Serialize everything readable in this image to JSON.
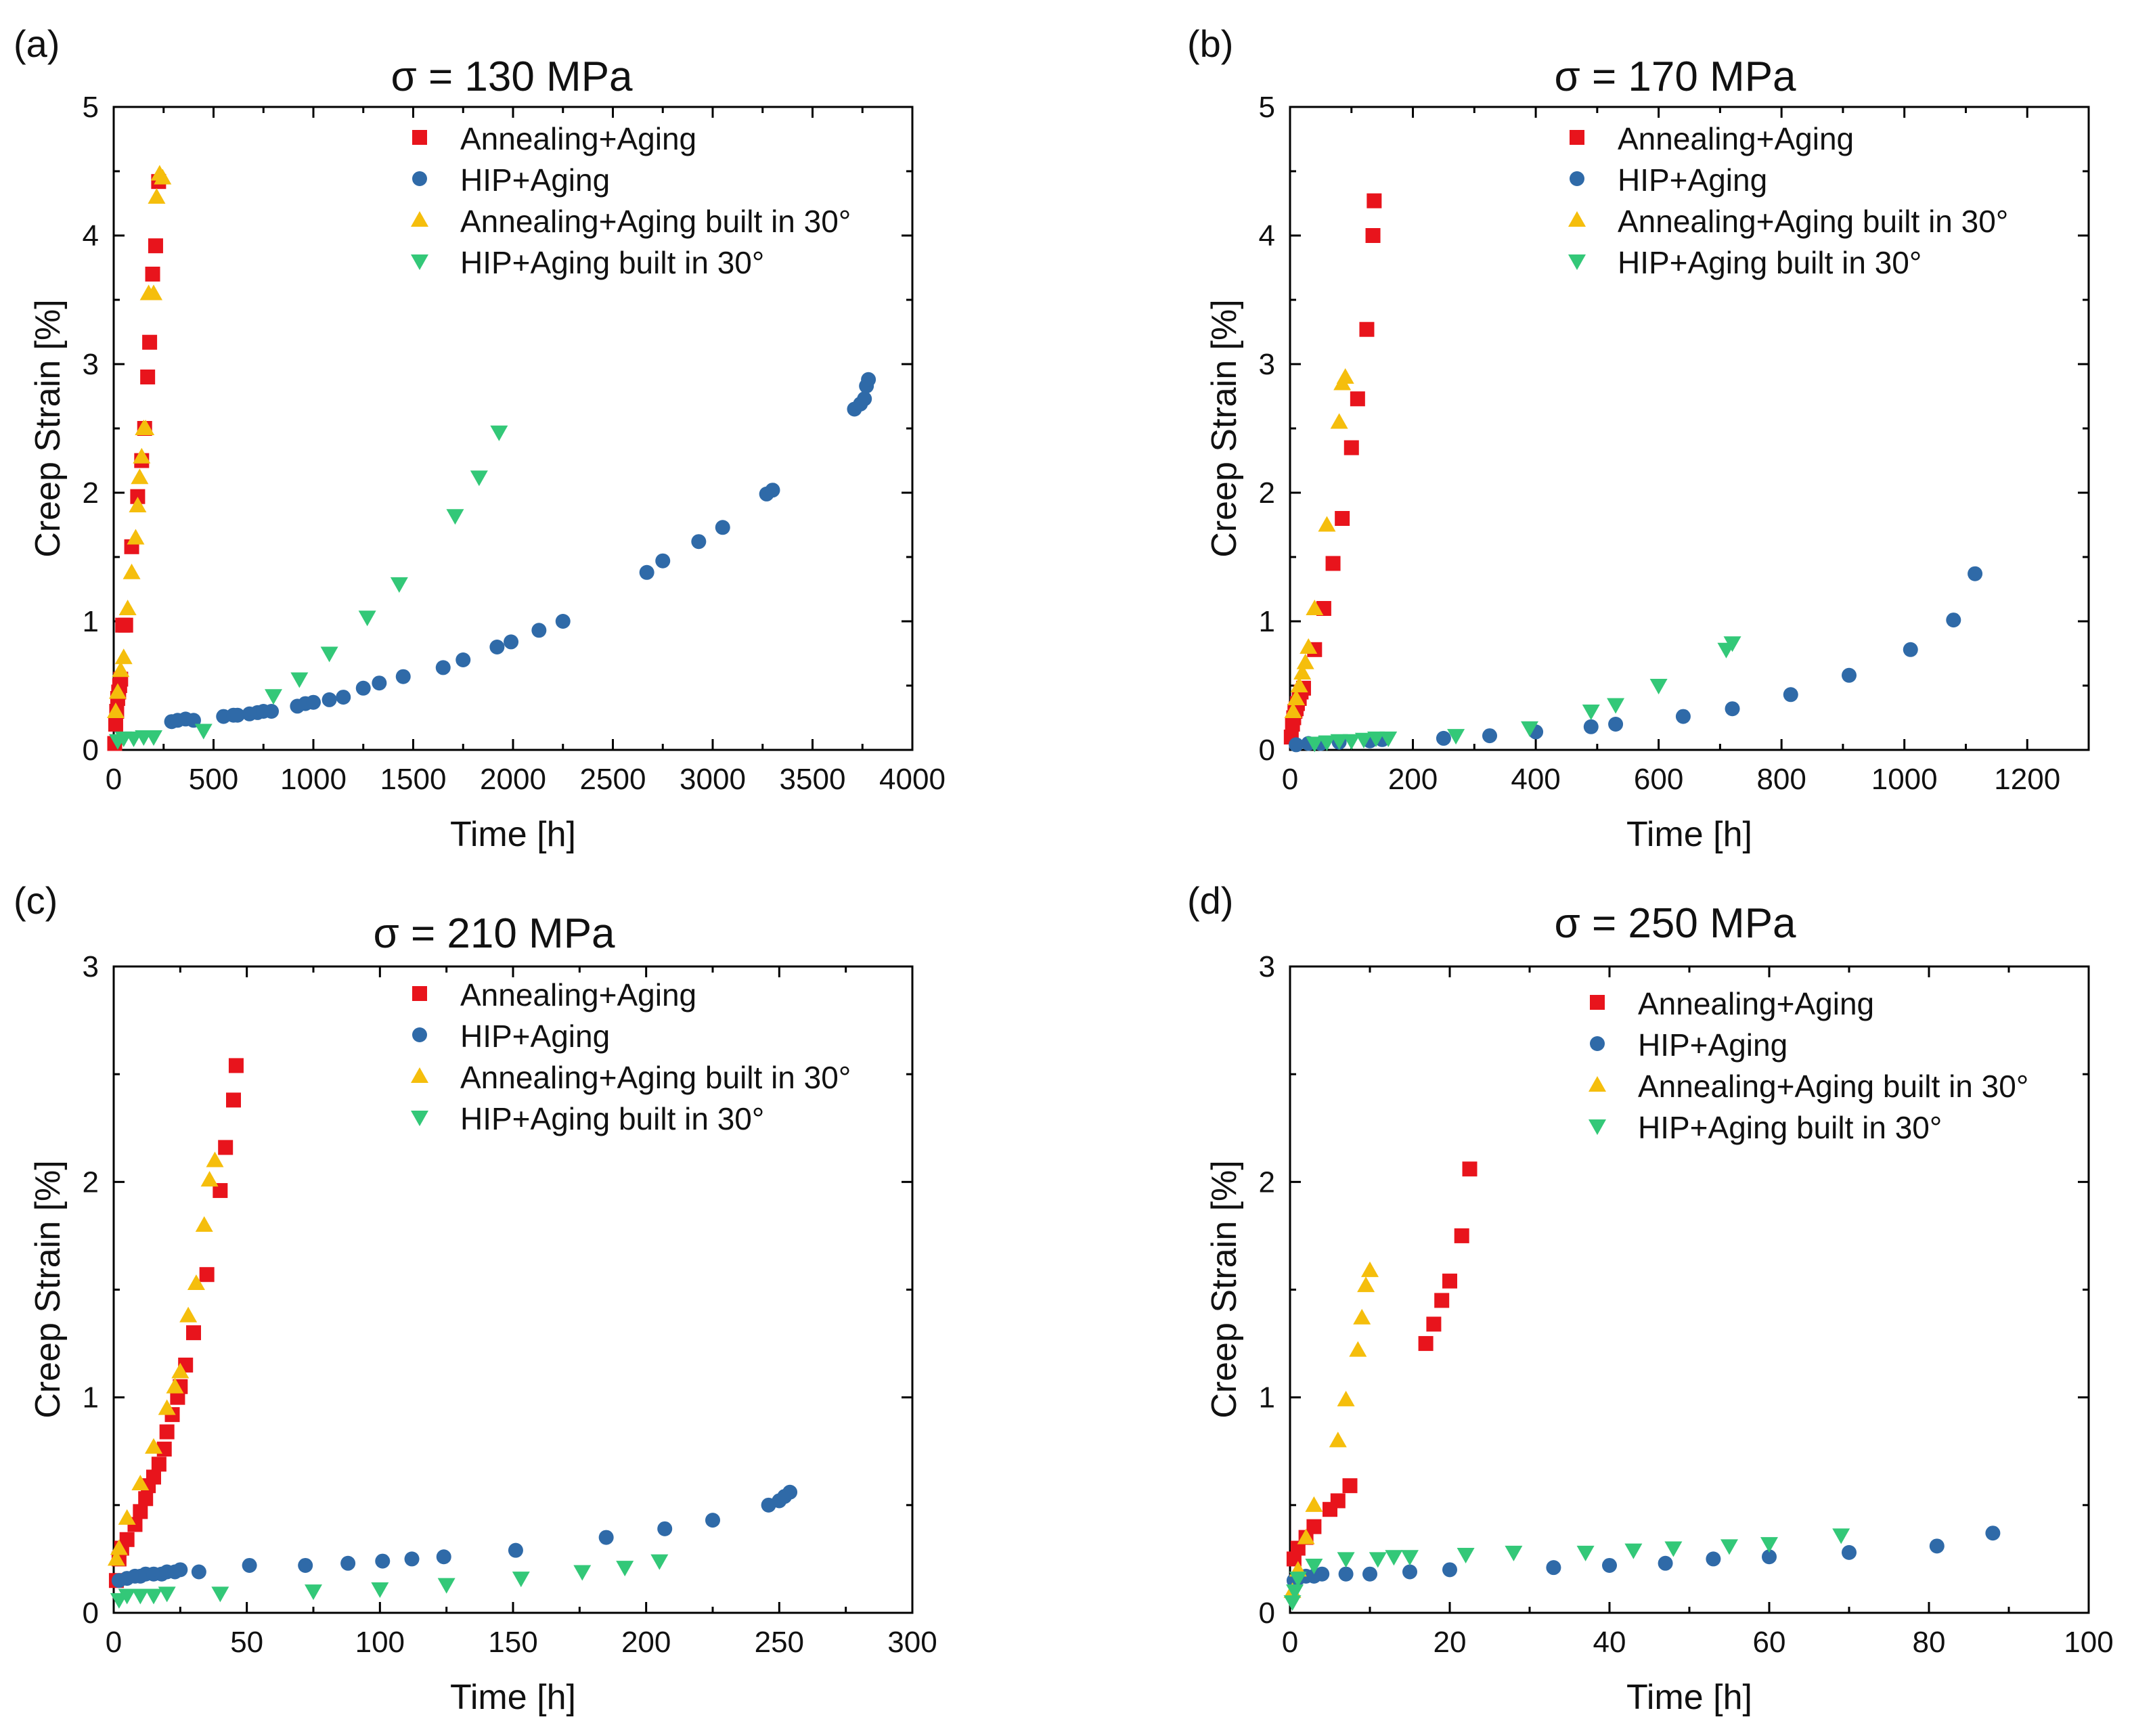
{
  "series_styles": [
    {
      "key": "aa",
      "marker": "square",
      "color": "#e8141c"
    },
    {
      "key": "hip",
      "marker": "circle",
      "color": "#2f6aa8"
    },
    {
      "key": "aa30",
      "marker": "triangle-up",
      "color": "#f5be0c"
    },
    {
      "key": "hip30",
      "marker": "triangle-down",
      "color": "#33c878"
    }
  ],
  "chart_data": [
    {
      "panel_label": "(a)",
      "type": "scatter",
      "title": "σ = 130 MPa",
      "xlabel": "Time [h]",
      "ylabel": "Creep Strain [%]",
      "xlim": [
        0,
        4000
      ],
      "ylim": [
        0,
        5
      ],
      "xticks": [
        0,
        500,
        1000,
        1500,
        2000,
        2500,
        3000,
        3500,
        4000
      ],
      "yticks": [
        0,
        1,
        2,
        3,
        4,
        5
      ],
      "legend": [
        "Annealing+Aging",
        "HIP+Aging",
        "Annealing+Aging built in 30°",
        "HIP+Aging built in 30°"
      ],
      "series": [
        {
          "name": "Annealing+Aging",
          "x": [
            5,
            10,
            15,
            20,
            25,
            30,
            35,
            45,
            60,
            90,
            120,
            140,
            155,
            170,
            180,
            195,
            210,
            225
          ],
          "y": [
            0.05,
            0.2,
            0.3,
            0.4,
            0.45,
            0.5,
            0.55,
            0.97,
            0.97,
            1.58,
            1.97,
            2.25,
            2.5,
            2.9,
            3.17,
            3.7,
            3.92,
            4.42
          ]
        },
        {
          "name": "HIP+Aging",
          "x": [
            290,
            320,
            360,
            400,
            550,
            600,
            620,
            680,
            720,
            750,
            790,
            920,
            960,
            1000,
            1080,
            1150,
            1250,
            1330,
            1450,
            1650,
            1750,
            1920,
            1990,
            2130,
            2250,
            2670,
            2750,
            2930,
            3050,
            3270,
            3300,
            3710,
            3740,
            3760,
            3770,
            3780
          ],
          "y": [
            0.22,
            0.23,
            0.24,
            0.23,
            0.26,
            0.27,
            0.27,
            0.28,
            0.29,
            0.3,
            0.3,
            0.34,
            0.36,
            0.37,
            0.39,
            0.41,
            0.48,
            0.52,
            0.57,
            0.64,
            0.7,
            0.8,
            0.84,
            0.93,
            1.0,
            1.38,
            1.47,
            1.62,
            1.73,
            1.99,
            2.02,
            2.65,
            2.69,
            2.73,
            2.83,
            2.88
          ]
        },
        {
          "name": "Annealing+Aging built in 30°",
          "x": [
            10,
            20,
            35,
            50,
            70,
            90,
            110,
            120,
            130,
            140,
            150,
            160,
            175,
            200,
            215,
            230,
            245
          ],
          "y": [
            0.3,
            0.45,
            0.62,
            0.72,
            1.1,
            1.38,
            1.65,
            1.9,
            2.12,
            2.28,
            2.5,
            2.5,
            3.55,
            3.55,
            4.3,
            4.48,
            4.45
          ]
        },
        {
          "name": "HIP+Aging built in 30°",
          "x": [
            20,
            50,
            100,
            150,
            200,
            450,
            800,
            930,
            1080,
            1270,
            1430,
            1710,
            1830,
            1930
          ],
          "y": [
            0.07,
            0.09,
            0.09,
            0.1,
            0.1,
            0.15,
            0.42,
            0.55,
            0.75,
            1.03,
            1.29,
            1.82,
            2.12,
            2.47
          ]
        }
      ]
    },
    {
      "panel_label": "(b)",
      "type": "scatter",
      "title": "σ = 170 MPa",
      "xlabel": "Time [h]",
      "ylabel": "Creep Strain [%]",
      "xlim": [
        0,
        1300
      ],
      "ylim": [
        0,
        5
      ],
      "xticks": [
        0,
        200,
        400,
        600,
        800,
        1000,
        1200
      ],
      "yticks": [
        0,
        1,
        2,
        3,
        4,
        5
      ],
      "legend": [
        "Annealing+Aging",
        "HIP+Aging",
        "Annealing+Aging built in 30°",
        "HIP+Aging built in 30°"
      ],
      "series": [
        {
          "name": "Annealing+Aging",
          "x": [
            2,
            4,
            6,
            8,
            10,
            12,
            15,
            18,
            22,
            40,
            55,
            70,
            85,
            100,
            110,
            125,
            135,
            137
          ],
          "y": [
            0.1,
            0.2,
            0.25,
            0.3,
            0.32,
            0.36,
            0.4,
            0.45,
            0.48,
            0.78,
            1.1,
            1.45,
            1.8,
            2.35,
            2.73,
            3.27,
            4.0,
            4.27
          ]
        },
        {
          "name": "HIP+Aging",
          "x": [
            10,
            30,
            50,
            80,
            130,
            150,
            250,
            325,
            400,
            490,
            530,
            640,
            720,
            815,
            910,
            1010,
            1080,
            1115
          ],
          "y": [
            0.04,
            0.05,
            0.05,
            0.06,
            0.07,
            0.08,
            0.09,
            0.11,
            0.14,
            0.18,
            0.2,
            0.26,
            0.32,
            0.43,
            0.58,
            0.78,
            1.01,
            1.37
          ]
        },
        {
          "name": "Annealing+Aging built in 30°",
          "x": [
            5,
            10,
            15,
            20,
            25,
            30,
            40,
            60,
            80,
            85,
            90
          ],
          "y": [
            0.3,
            0.4,
            0.5,
            0.6,
            0.68,
            0.8,
            1.1,
            1.75,
            2.55,
            2.85,
            2.9
          ]
        },
        {
          "name": "HIP+Aging built in 30°",
          "x": [
            40,
            60,
            80,
            100,
            120,
            140,
            160,
            270,
            390,
            490,
            530,
            600,
            710,
            720
          ],
          "y": [
            0.05,
            0.06,
            0.07,
            0.07,
            0.08,
            0.09,
            0.09,
            0.11,
            0.17,
            0.3,
            0.35,
            0.5,
            0.78,
            0.83
          ]
        }
      ]
    },
    {
      "panel_label": "(c)",
      "type": "scatter",
      "title": "σ = 210 MPa",
      "xlabel": "Time [h]",
      "ylabel": "Creep Strain [%]",
      "xlim": [
        0,
        300
      ],
      "ylim": [
        0,
        3
      ],
      "xticks": [
        0,
        50,
        100,
        150,
        200,
        250,
        300
      ],
      "yticks": [
        0,
        1,
        2,
        3
      ],
      "legend": [
        "Annealing+Aging",
        "HIP+Aging",
        "Annealing+Aging built in 30°",
        "HIP+Aging built in 30°"
      ],
      "series": [
        {
          "name": "Annealing+Aging",
          "x": [
            1,
            2,
            3,
            5,
            8,
            10,
            12,
            13,
            15,
            17,
            19,
            20,
            22,
            24,
            25,
            27,
            30,
            35,
            40,
            42,
            45,
            46
          ],
          "y": [
            0.15,
            0.25,
            0.3,
            0.34,
            0.41,
            0.47,
            0.53,
            0.59,
            0.63,
            0.69,
            0.76,
            0.84,
            0.92,
            1.0,
            1.05,
            1.15,
            1.3,
            1.57,
            1.96,
            2.16,
            2.38,
            2.54
          ]
        },
        {
          "name": "HIP+Aging",
          "x": [
            2,
            5,
            8,
            10,
            12,
            15,
            18,
            20,
            23,
            25,
            32,
            51,
            72,
            88,
            101,
            112,
            124,
            151,
            185,
            207,
            225,
            246,
            250,
            252,
            254
          ],
          "y": [
            0.15,
            0.16,
            0.17,
            0.17,
            0.18,
            0.18,
            0.18,
            0.19,
            0.19,
            0.2,
            0.19,
            0.22,
            0.22,
            0.23,
            0.24,
            0.25,
            0.26,
            0.29,
            0.35,
            0.39,
            0.43,
            0.5,
            0.52,
            0.54,
            0.56
          ]
        },
        {
          "name": "Annealing+Aging built in 30°",
          "x": [
            1,
            2,
            5,
            10,
            15,
            20,
            23,
            25,
            28,
            31,
            34,
            36,
            38
          ],
          "y": [
            0.25,
            0.3,
            0.44,
            0.6,
            0.77,
            0.95,
            1.05,
            1.12,
            1.38,
            1.53,
            1.8,
            2.01,
            2.1
          ]
        },
        {
          "name": "HIP+Aging built in 30°",
          "x": [
            2,
            5,
            10,
            15,
            20,
            40,
            75,
            100,
            125,
            153,
            176,
            192,
            205
          ],
          "y": [
            0.06,
            0.08,
            0.08,
            0.08,
            0.09,
            0.09,
            0.1,
            0.11,
            0.13,
            0.16,
            0.19,
            0.21,
            0.24
          ]
        }
      ]
    },
    {
      "panel_label": "(d)",
      "type": "scatter",
      "title": "σ = 250 MPa",
      "xlabel": "Time [h]",
      "ylabel": "Creep Strain [%]",
      "xlim": [
        0,
        100
      ],
      "ylim": [
        0,
        3
      ],
      "xticks": [
        0,
        20,
        40,
        60,
        80,
        100
      ],
      "yticks": [
        0,
        1,
        2,
        3
      ],
      "legend": [
        "Annealing+Aging",
        "HIP+Aging",
        "Annealing+Aging built in 30°",
        "HIP+Aging built in 30°"
      ],
      "series": [
        {
          "name": "Annealing+Aging",
          "x": [
            0.5,
            1,
            2,
            3,
            5,
            6,
            7.5,
            17,
            18,
            19,
            20,
            21.5,
            22.5
          ],
          "y": [
            0.25,
            0.3,
            0.35,
            0.4,
            0.48,
            0.52,
            0.59,
            1.25,
            1.34,
            1.45,
            1.54,
            1.75,
            2.06
          ]
        },
        {
          "name": "HIP+Aging",
          "x": [
            0.5,
            1,
            2,
            3,
            4,
            7,
            10,
            15,
            20,
            33,
            40,
            47,
            53,
            60,
            70,
            81,
            88
          ],
          "y": [
            0.15,
            0.16,
            0.17,
            0.17,
            0.18,
            0.18,
            0.18,
            0.19,
            0.2,
            0.21,
            0.22,
            0.23,
            0.25,
            0.26,
            0.28,
            0.31,
            0.37
          ]
        },
        {
          "name": "Annealing+Aging built in 30°",
          "x": [
            0.3,
            1,
            2,
            3,
            6,
            7,
            8.5,
            9,
            9.5,
            10
          ],
          "y": [
            0.1,
            0.2,
            0.35,
            0.5,
            0.8,
            0.99,
            1.22,
            1.37,
            1.52,
            1.59
          ]
        },
        {
          "name": "HIP+Aging built in 30°",
          "x": [
            0.3,
            0.6,
            1,
            3,
            7,
            11,
            13,
            15,
            22,
            28,
            37,
            43,
            48,
            55,
            60,
            69
          ],
          "y": [
            0.05,
            0.1,
            0.16,
            0.22,
            0.25,
            0.25,
            0.26,
            0.26,
            0.27,
            0.28,
            0.28,
            0.29,
            0.3,
            0.31,
            0.32,
            0.36
          ]
        }
      ]
    }
  ]
}
